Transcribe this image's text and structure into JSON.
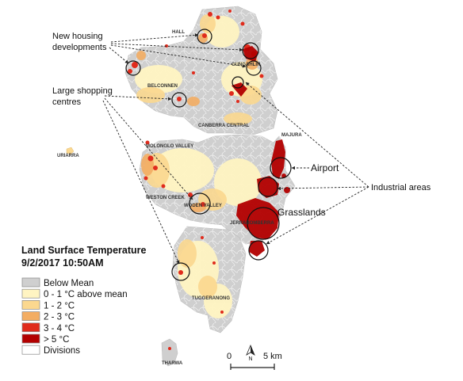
{
  "legend": {
    "title": "Land Surface Temperature",
    "subtitle": "9/2/2017 10:50AM",
    "items": [
      {
        "label": "Below Mean",
        "color": "#cfcfcf"
      },
      {
        "label": "0 - 1 °C above mean",
        "color": "#fff4c2"
      },
      {
        "label": "1 - 2 °C",
        "color": "#fbd88f"
      },
      {
        "label": "2 - 3 °C",
        "color": "#f3ad63"
      },
      {
        "label": "3 - 4 °C",
        "color": "#e02b1c"
      },
      {
        "label": "> 5 °C",
        "color": "#b30000"
      },
      {
        "label": "Divisions",
        "color": "#ffffff"
      }
    ]
  },
  "annotations": {
    "new_housing_line1": "New housing",
    "new_housing_line2": "developments",
    "shopping_line1": "Large shopping",
    "shopping_line2": "centres",
    "airport": "Airport",
    "industrial": "Industrial areas",
    "grasslands": "Grasslands"
  },
  "districts": {
    "hall": "HALL",
    "gungahlin": "GUNGAHLIN",
    "belconnen": "BELCONNEN",
    "canberra_central": "CANBERRA CENTRAL",
    "majura": "MAJURA",
    "uriarra": "URIARRA",
    "molonglo_valley": "MOLONGLO VALLEY",
    "weston_creek": "WESTON CREEK",
    "woden_valley": "WODEN VALLEY",
    "jerrabomberra": "JERRABOMBERRA",
    "tuggeranong": "TUGGERANONG",
    "tharwa": "THARWA"
  },
  "scale_bar": {
    "start": "0",
    "end": "5 km"
  },
  "north_arrow": {
    "label": "N"
  }
}
